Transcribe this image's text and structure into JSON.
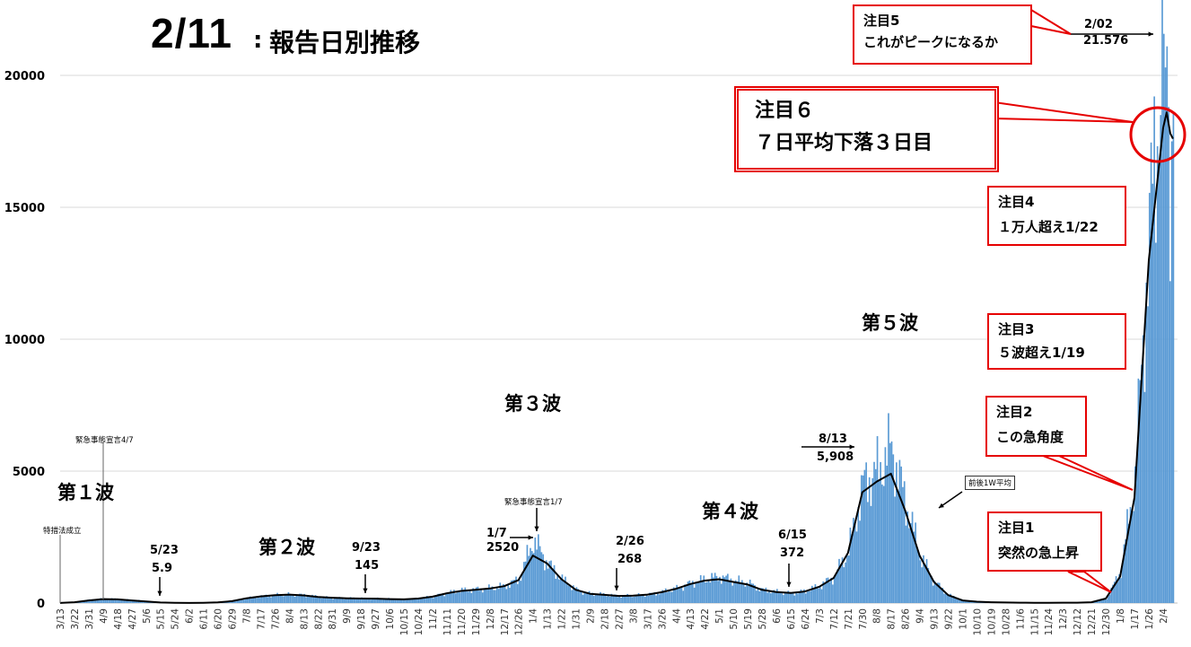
{
  "header": {
    "date": "2/11",
    "separator": ":",
    "title": "報告日別推移"
  },
  "chart_data": {
    "type": "bar",
    "title": "2/11：報告日別推移",
    "ylim": [
      0,
      22000
    ],
    "yticks": [
      0,
      5000,
      10000,
      15000,
      20000
    ],
    "x_start_date": "3/13",
    "x_ticks": [
      "3/13",
      "3/22",
      "3/31",
      "4/9",
      "4/18",
      "4/27",
      "5/6",
      "5/15",
      "5/24",
      "6/2",
      "6/11",
      "6/20",
      "6/29",
      "7/8",
      "7/17",
      "7/26",
      "8/4",
      "8/13",
      "8/22",
      "8/31",
      "9/9",
      "9/18",
      "9/27",
      "10/6",
      "10/15",
      "10/24",
      "11/2",
      "11/11",
      "11/20",
      "11/29",
      "12/8",
      "12/17",
      "12/26",
      "1/4",
      "1/13",
      "1/22",
      "1/31",
      "2/9",
      "2/18",
      "2/27",
      "3/8",
      "3/17",
      "3/26",
      "4/4",
      "4/13",
      "4/22",
      "5/1",
      "5/10",
      "5/19",
      "5/28",
      "6/6",
      "6/15",
      "6/24",
      "7/3",
      "7/12",
      "7/21",
      "7/30",
      "8/8",
      "8/17",
      "8/26",
      "9/4",
      "9/13",
      "9/22",
      "10/1",
      "10/10",
      "10/19",
      "10/28",
      "11/6",
      "11/15",
      "11/24",
      "12/3",
      "12/12",
      "12/21",
      "12/30",
      "1/8",
      "1/17",
      "1/26",
      "2/4"
    ],
    "grid": true,
    "bar_color": "#5b9bd5",
    "line_color": "#000000",
    "series": [
      {
        "type": "bar",
        "values_by_tick": [
          5,
          40,
          120,
          160,
          150,
          110,
          70,
          20,
          6,
          5,
          10,
          25,
          70,
          180,
          260,
          300,
          330,
          300,
          230,
          200,
          180,
          180,
          170,
          150,
          140,
          170,
          250,
          380,
          480,
          520,
          560,
          650,
          900,
          2400,
          1500,
          900,
          500,
          350,
          320,
          268,
          280,
          320,
          420,
          550,
          750,
          900,
          1000,
          850,
          750,
          500,
          420,
          372,
          450,
          650,
          1000,
          2000,
          4500,
          5000,
          5908,
          3800,
          1800,
          800,
          300,
          100,
          50,
          30,
          20,
          15,
          10,
          10,
          12,
          15,
          30,
          180,
          1200,
          4800,
          14000,
          21576
        ]
      },
      {
        "name": "前後1W平均",
        "type": "line",
        "values_by_tick": [
          5,
          30,
          100,
          150,
          140,
          100,
          60,
          20,
          6,
          5,
          10,
          25,
          70,
          180,
          250,
          300,
          320,
          290,
          230,
          200,
          180,
          170,
          165,
          150,
          140,
          170,
          240,
          370,
          460,
          500,
          550,
          640,
          870,
          1800,
          1500,
          900,
          500,
          350,
          310,
          270,
          280,
          320,
          410,
          540,
          720,
          850,
          900,
          800,
          700,
          500,
          420,
          380,
          440,
          620,
          950,
          1900,
          4200,
          4600,
          4900,
          3500,
          1800,
          800,
          300,
          100,
          50,
          30,
          20,
          15,
          10,
          10,
          12,
          15,
          30,
          170,
          1000,
          4000,
          13000,
          18000
        ]
      }
    ]
  },
  "waves": {
    "w1": "第１波",
    "w2": "第２波",
    "w3": "第３波",
    "w4": "第４波",
    "w5": "第５波"
  },
  "annotations": {
    "tokusoho": "特措法成立",
    "kinkyu1": "緊急事態宣言4/7",
    "kinkyu2": "緊急事態宣言1/7",
    "d523_date": "5/23",
    "d523_val": "5.9",
    "d923_date": "9/23",
    "d923_val": "145",
    "d17_date": "1/7",
    "d17_val": "2520",
    "d226_date": "2/26",
    "d226_val": "268",
    "d615_date": "6/15",
    "d615_val": "372",
    "d813_date": "8/13",
    "d813_val": "5,908",
    "d202_date": "2/02",
    "d202_val": "21.576",
    "avg_label": "前後1W平均"
  },
  "callouts": {
    "c1_title": "注目1",
    "c1_text": "突然の急上昇",
    "c2_title": "注目2",
    "c2_text": "この急角度",
    "c3_title": "注目3",
    "c3_text": "５波超え1/19",
    "c4_title": "注目4",
    "c4_text": "１万人超え1/22",
    "c5_title": "注目5",
    "c5_text": "これがピークになるか",
    "c6_title": "注目６",
    "c6_text": "７日平均下落３日目"
  },
  "colors": {
    "accent_red": "#e60000",
    "bar_blue": "#5b9bd5",
    "grid": "#d9d9d9"
  }
}
